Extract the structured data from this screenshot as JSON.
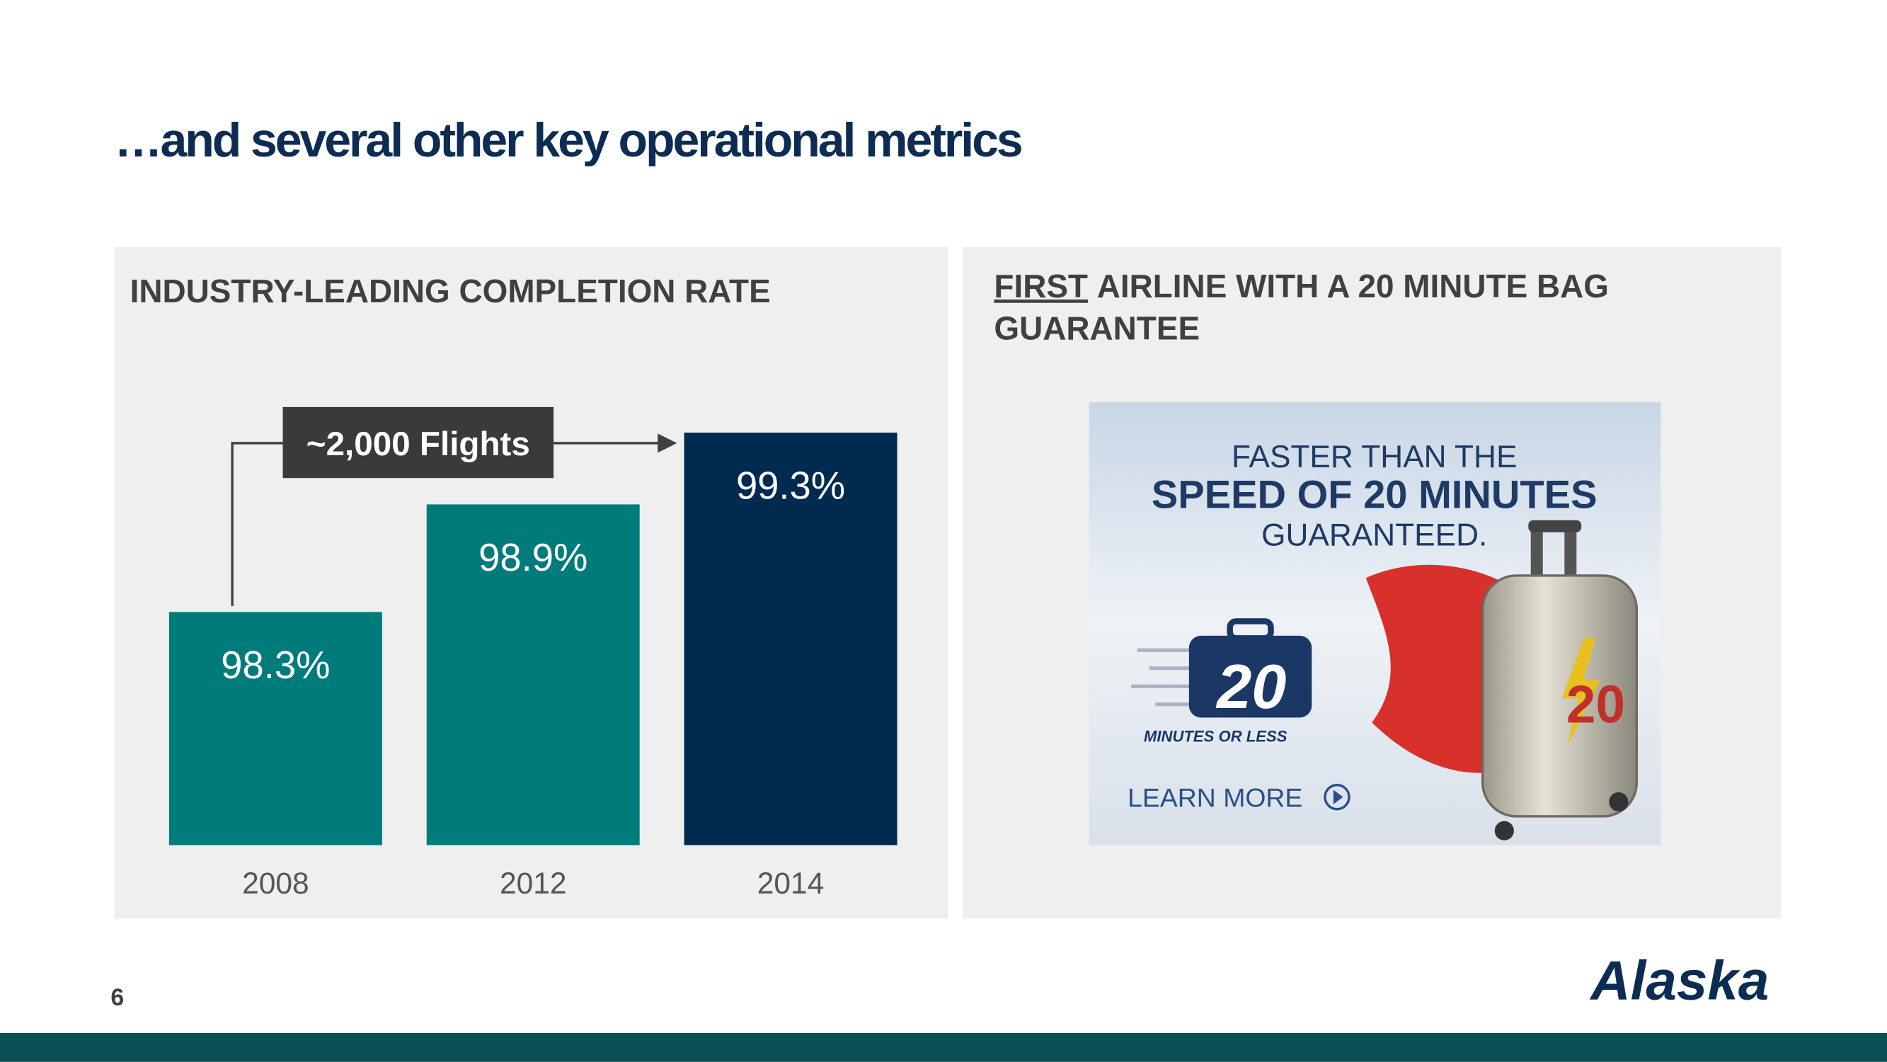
{
  "title": "…and several other key operational metrics",
  "left_panel": {
    "heading": "INDUSTRY-LEADING COMPLETION RATE",
    "chart": {
      "type": "bar",
      "categories": [
        "2008",
        "2012",
        "2014"
      ],
      "values": [
        98.3,
        98.9,
        99.3
      ],
      "value_labels": [
        "98.3%",
        "98.9%",
        "99.3%"
      ],
      "colors": [
        "#007b7b",
        "#007b7b",
        "#002a50"
      ],
      "ylim": [
        97,
        100
      ],
      "annotation": "~2,000 Flights"
    }
  },
  "right_panel": {
    "heading_first": "FIRST",
    "heading_line1": "AIRLINE WITH A 20 MINUTE BAG",
    "heading_line2": "GUARANTEE",
    "ad": {
      "line1": "FASTER THAN THE",
      "line2": "SPEED OF 20 MINUTES",
      "line3": "GUARANTEED.",
      "badge": "20",
      "badge_caption": "MINUTES OR LESS",
      "cta": "LEARN MORE",
      "suitcase": "20"
    }
  },
  "page_number": "6",
  "logo": "Alaska"
}
